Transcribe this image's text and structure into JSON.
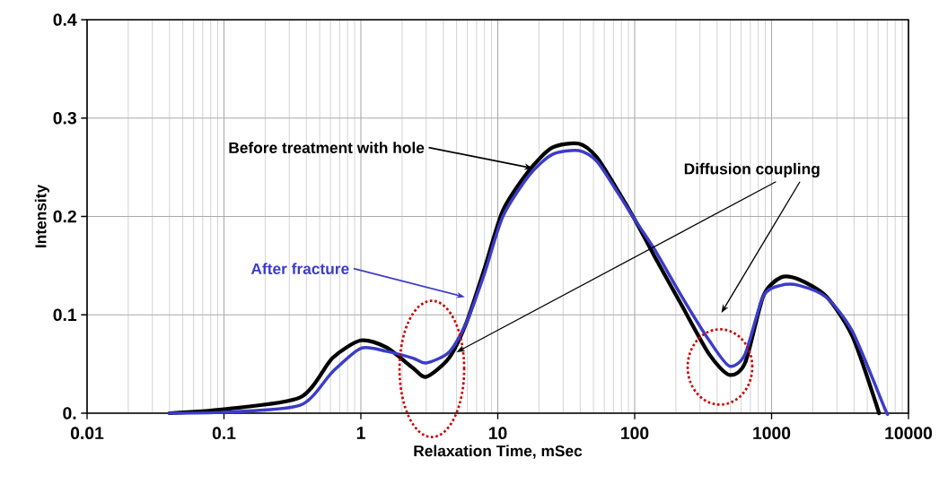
{
  "chart_data": {
    "type": "line",
    "xlabel": "Relaxation Time, mSec",
    "ylabel": "Intensity",
    "log": "x",
    "xlim": [
      0.01,
      10000
    ],
    "ylim": [
      0,
      0.4
    ],
    "xticks": [
      0.01,
      0.1,
      1,
      10,
      100,
      1000,
      10000
    ],
    "yticks": [
      {
        "value": 0,
        "label": "0."
      },
      0.1,
      0.2,
      0.3,
      0.4
    ],
    "grid": true,
    "marker": "none",
    "series": [
      {
        "name": "Before treatment with hole",
        "color": "#000000",
        "x": [
          0.04,
          0.1,
          0.36,
          0.62,
          1,
          1.53,
          2.4,
          3.0,
          4.4,
          5.9,
          8,
          10.9,
          17,
          25,
          39,
          53,
          77,
          100,
          139,
          220,
          350,
          490,
          640,
          870,
          1170,
          1580,
          2500,
          3900,
          6100
        ],
        "values": [
          0,
          0.004,
          0.016,
          0.056,
          0.074,
          0.067,
          0.046,
          0.037,
          0.056,
          0.092,
          0.147,
          0.206,
          0.247,
          0.27,
          0.274,
          0.26,
          0.224,
          0.197,
          0.16,
          0.11,
          0.06,
          0.039,
          0.051,
          0.119,
          0.138,
          0.136,
          0.119,
          0.078,
          0
        ]
      },
      {
        "name": "After fracture",
        "color": "#3c3cc8",
        "x": [
          0.04,
          0.1,
          0.36,
          0.62,
          1,
          1.53,
          2.4,
          3.0,
          4.4,
          5.9,
          8,
          10.9,
          17,
          25,
          39,
          53,
          77,
          100,
          139,
          220,
          350,
          490,
          640,
          870,
          1170,
          1580,
          2500,
          3900,
          6700,
          7000
        ],
        "values": [
          0,
          0.001,
          0.008,
          0.042,
          0.066,
          0.063,
          0.056,
          0.051,
          0.062,
          0.092,
          0.142,
          0.2,
          0.242,
          0.263,
          0.267,
          0.256,
          0.222,
          0.197,
          0.167,
          0.119,
          0.074,
          0.048,
          0.06,
          0.119,
          0.13,
          0.13,
          0.118,
          0.083,
          0.005,
          0
        ]
      }
    ],
    "annotations": [
      "Diffusion coupling"
    ]
  }
}
